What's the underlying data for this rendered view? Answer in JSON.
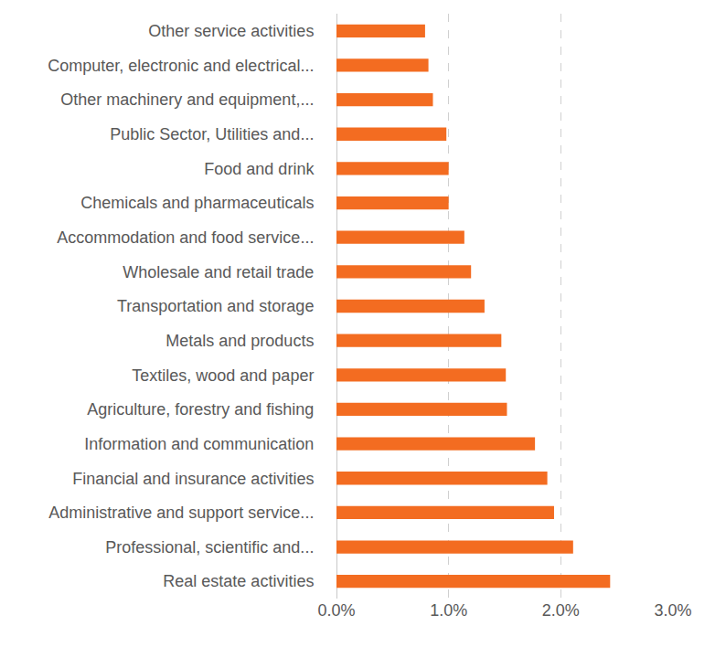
{
  "chart_data": {
    "type": "bar",
    "orientation": "horizontal",
    "categories": [
      "Other service activities",
      "Computer, electronic and electrical...",
      "Other machinery and equipment,...",
      "Public Sector, Utilities and...",
      "Food and drink",
      "Chemicals and pharmaceuticals",
      "Accommodation and food service...",
      "Wholesale and retail trade",
      "Transportation and storage",
      "Metals and products",
      "Textiles, wood and paper",
      "Agriculture, forestry and fishing",
      "Information and communication",
      "Financial and insurance activities",
      "Administrative and support service...",
      "Professional, scientific and...",
      "Real estate activities"
    ],
    "values": [
      0.79,
      0.82,
      0.86,
      0.98,
      1.0,
      1.0,
      1.14,
      1.2,
      1.32,
      1.47,
      1.51,
      1.52,
      1.77,
      1.88,
      1.94,
      2.11,
      2.44
    ],
    "color": "#F36C21",
    "xlim": [
      0,
      3
    ],
    "xticks": [
      {
        "value": 0,
        "label": "0.0%"
      },
      {
        "value": 1,
        "label": "1.0%"
      },
      {
        "value": 2,
        "label": "2.0%"
      },
      {
        "value": 3,
        "label": "3.0%"
      }
    ],
    "grid": true
  }
}
